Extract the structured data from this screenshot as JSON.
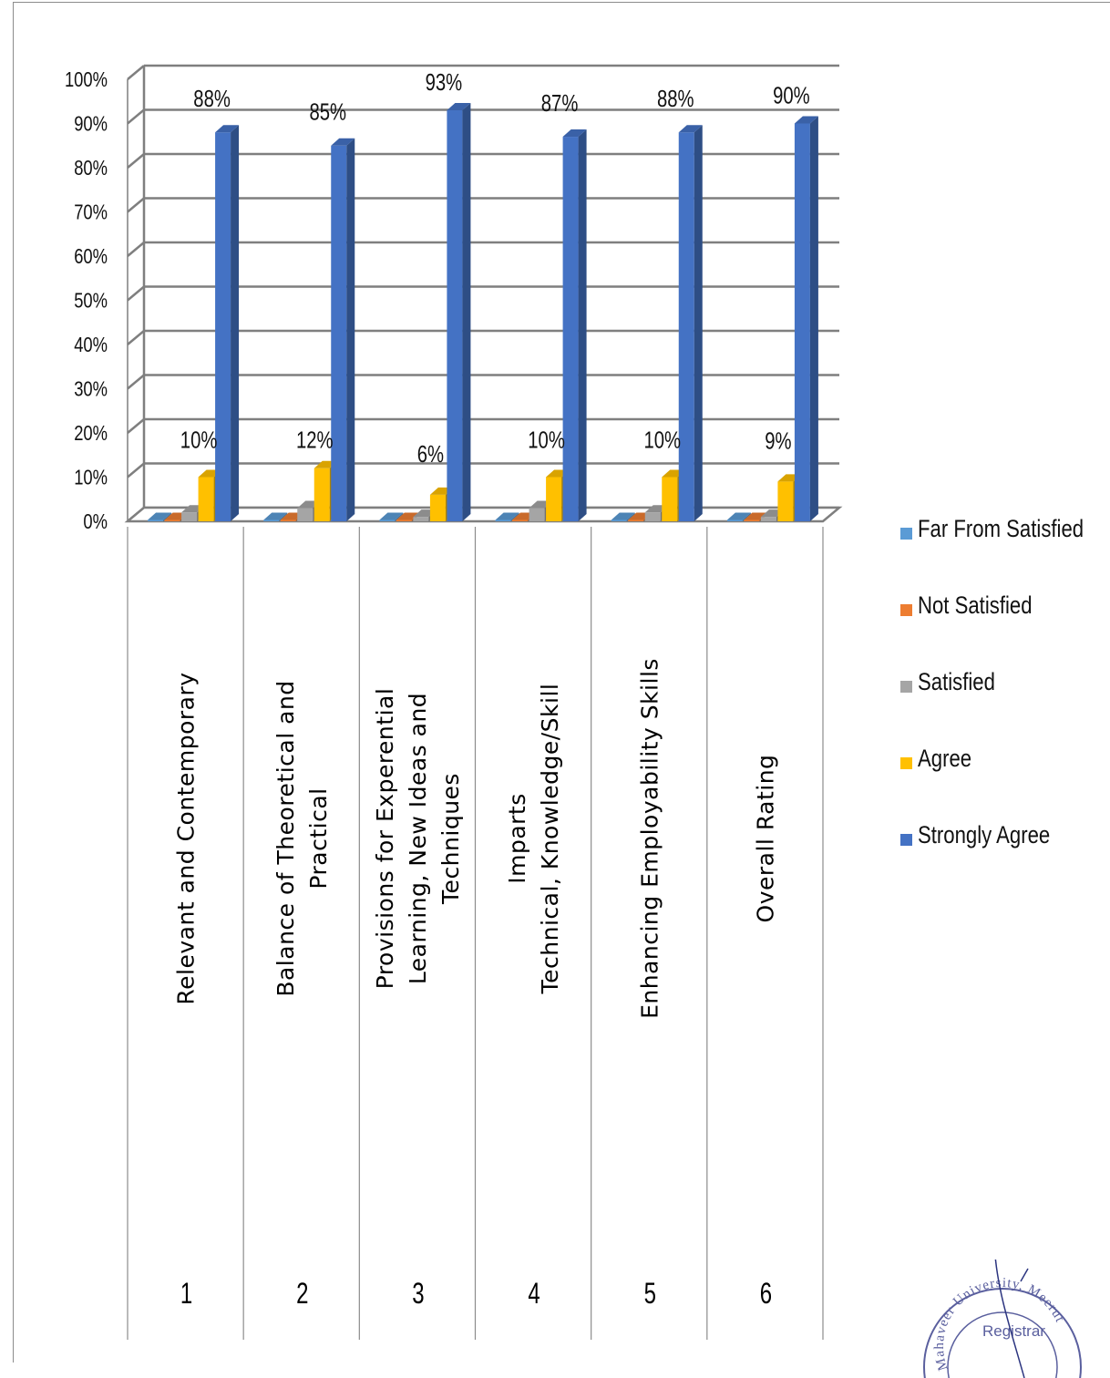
{
  "colors": {
    "far_from_satisfied": "#5B9BD5",
    "not_satisfied": "#ED7D31",
    "satisfied": "#A5A5A5",
    "agree": "#FFC000",
    "strongly_agree": "#4472C4",
    "grid": "#7f7f7f"
  },
  "chart_data": {
    "type": "bar",
    "style": "3d-clustered-column",
    "ylim": [
      0,
      100
    ],
    "y_unit": "%",
    "y_ticks": [
      "0%",
      "10%",
      "20%",
      "30%",
      "40%",
      "50%",
      "60%",
      "70%",
      "80%",
      "90%",
      "100%"
    ],
    "grid": true,
    "legend_position": "right",
    "categories": [
      {
        "number": "1",
        "label_lines": [
          "Relevant and Contemporary"
        ]
      },
      {
        "number": "2",
        "label_lines": [
          "Balance of Theoretical and",
          "Practical"
        ]
      },
      {
        "number": "3",
        "label_lines": [
          "Provisions for Experential",
          "Learning, New Ideas and",
          "Techniques"
        ]
      },
      {
        "number": "4",
        "label_lines": [
          "Imparts",
          "Technical, Knowledge/Skill"
        ]
      },
      {
        "number": "5",
        "label_lines": [
          "Enhancing Employability Skills"
        ]
      },
      {
        "number": "6",
        "label_lines": [
          "Overall Rating"
        ]
      }
    ],
    "series": [
      {
        "name": "Far From Satisfied",
        "values": [
          0,
          0,
          0,
          0,
          0,
          0
        ],
        "labels": [
          "",
          "",
          "",
          "",
          "",
          ""
        ]
      },
      {
        "name": "Not Satisfied",
        "values": [
          0,
          0,
          0,
          0,
          0,
          0
        ],
        "labels": [
          "",
          "",
          "",
          "",
          "",
          ""
        ]
      },
      {
        "name": "Satisfied",
        "values": [
          2,
          3,
          1,
          3,
          2,
          1
        ],
        "labels": [
          "",
          "",
          "",
          "",
          "",
          ""
        ]
      },
      {
        "name": "Agree",
        "values": [
          10,
          12,
          6,
          10,
          10,
          9
        ],
        "labels": [
          "10%",
          "12%",
          "6%",
          "10%",
          "10%",
          "9%"
        ]
      },
      {
        "name": "Strongly Agree",
        "values": [
          88,
          85,
          93,
          87,
          88,
          90
        ],
        "labels": [
          "88%",
          "85%",
          "93%",
          "87%",
          "88%",
          "90%"
        ]
      }
    ]
  },
  "seal": {
    "text_ring": "Mahaveer University, Meerut",
    "center_text": "Registrar"
  }
}
